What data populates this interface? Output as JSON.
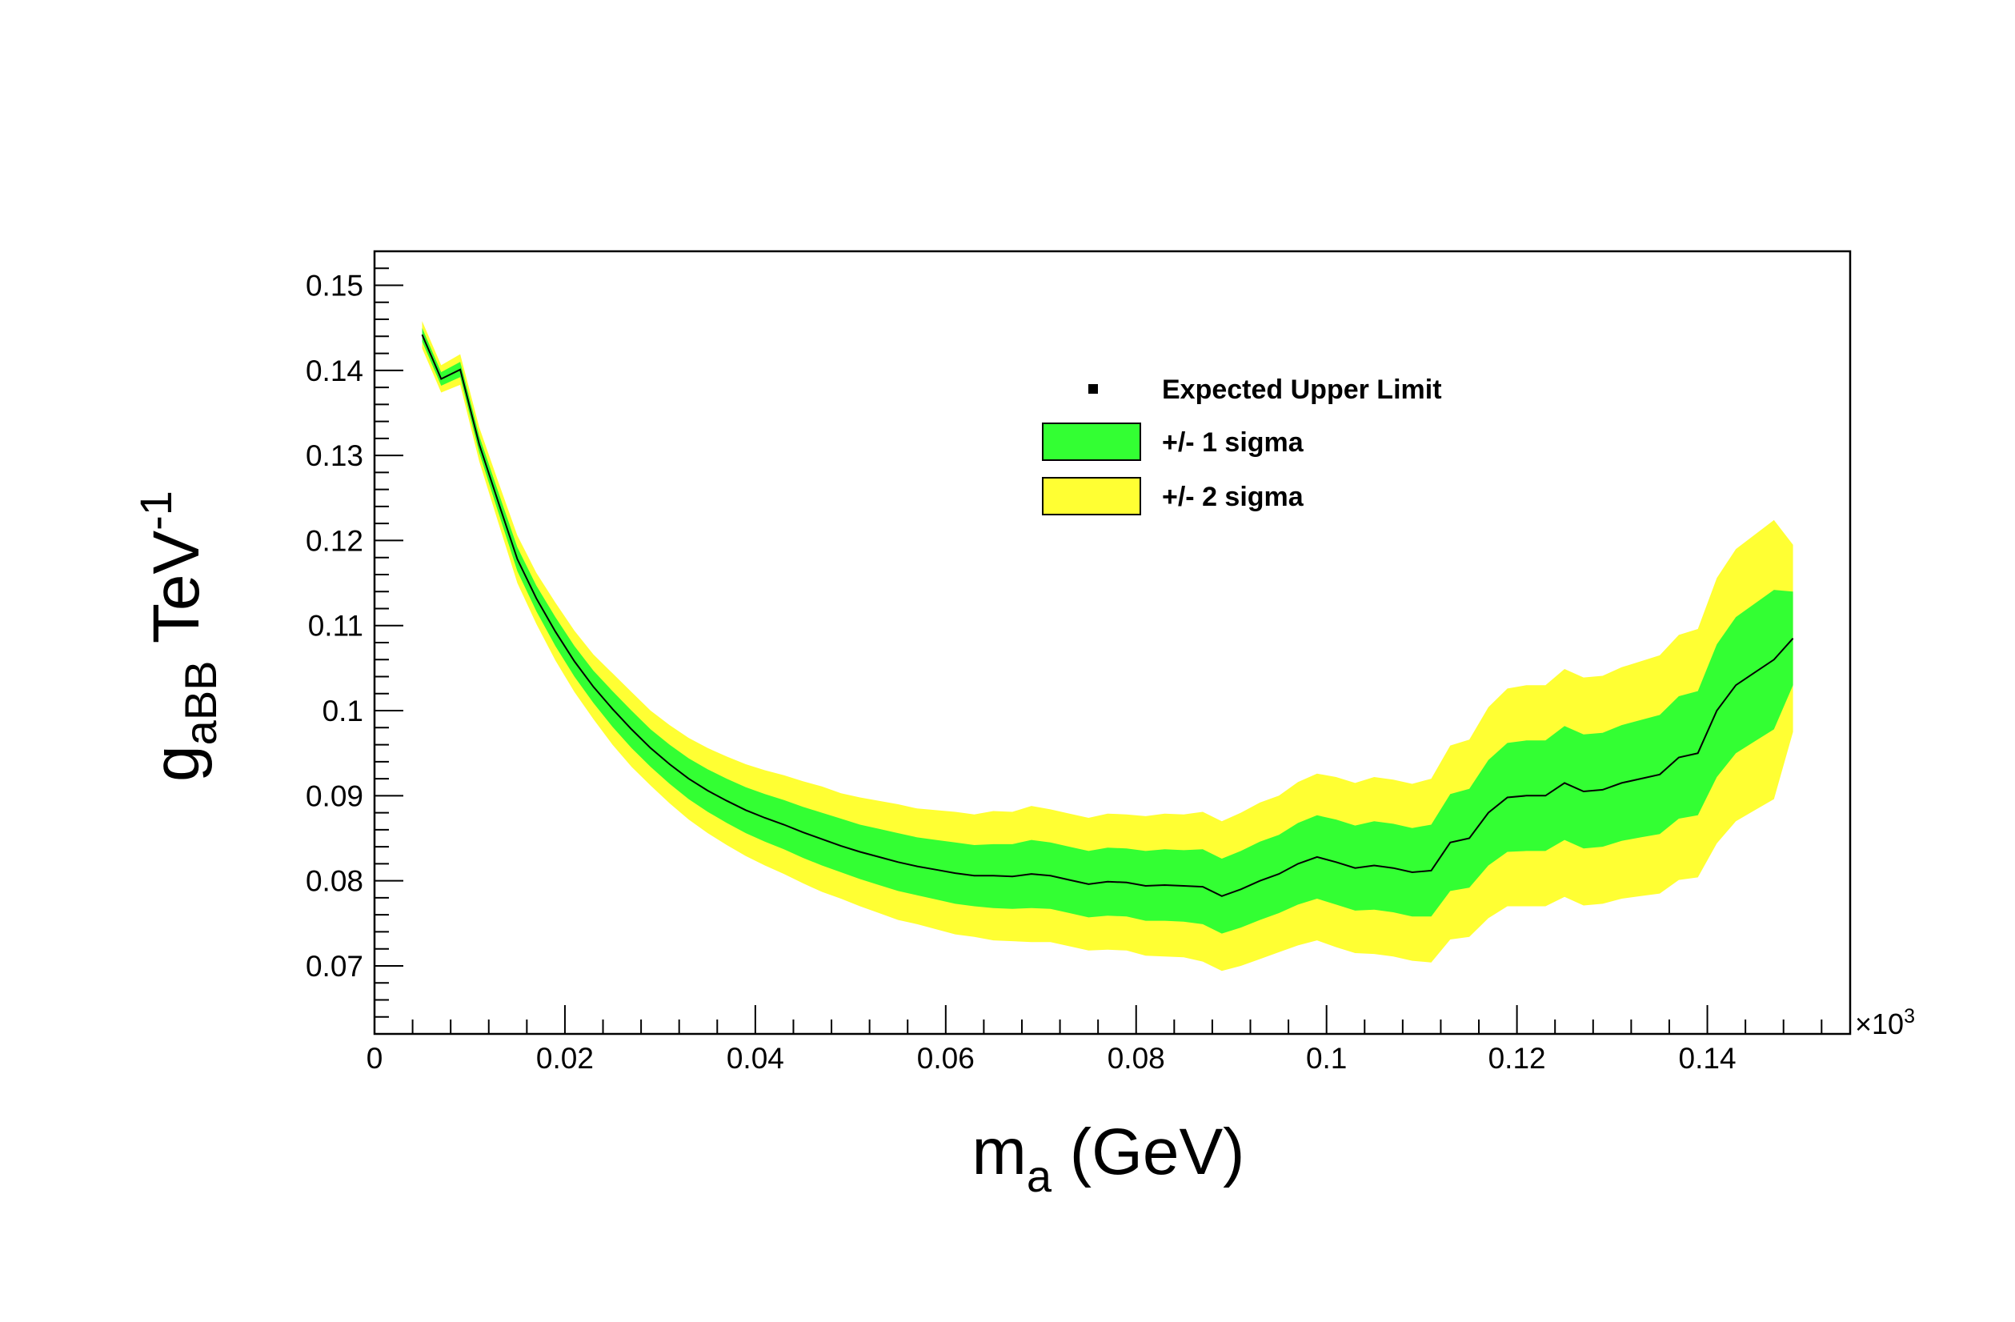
{
  "chart_data": {
    "type": "line",
    "title": "",
    "xlabel": {
      "main": "m",
      "sub": "a",
      "suffix": " (GeV)"
    },
    "ylabel": {
      "main": "g",
      "sub": "aBB",
      "mid": " TeV",
      "sup": "-1"
    },
    "x_multiplier": {
      "prefix": "×10",
      "exp": "3"
    },
    "xlim": [
      0,
      0.155
    ],
    "ylim": [
      0.062,
      0.154
    ],
    "x_ticks": [
      {
        "v": 0,
        "label": "0"
      },
      {
        "v": 0.02,
        "label": "0.02"
      },
      {
        "v": 0.04,
        "label": "0.04"
      },
      {
        "v": 0.06,
        "label": "0.06"
      },
      {
        "v": 0.08,
        "label": "0.08"
      },
      {
        "v": 0.1,
        "label": "0.1"
      },
      {
        "v": 0.12,
        "label": "0.12"
      },
      {
        "v": 0.14,
        "label": "0.14"
      }
    ],
    "y_ticks": [
      {
        "v": 0.07,
        "label": "0.07"
      },
      {
        "v": 0.08,
        "label": "0.08"
      },
      {
        "v": 0.09,
        "label": "0.09"
      },
      {
        "v": 0.1,
        "label": "0.1"
      },
      {
        "v": 0.11,
        "label": "0.11"
      },
      {
        "v": 0.12,
        "label": "0.12"
      },
      {
        "v": 0.13,
        "label": "0.13"
      },
      {
        "v": 0.14,
        "label": "0.14"
      },
      {
        "v": 0.15,
        "label": "0.15"
      }
    ],
    "x": [
      0.005,
      0.007,
      0.009,
      0.011,
      0.013,
      0.015,
      0.017,
      0.019,
      0.021,
      0.023,
      0.025,
      0.027,
      0.029,
      0.031,
      0.033,
      0.035,
      0.037,
      0.039,
      0.041,
      0.043,
      0.045,
      0.047,
      0.049,
      0.051,
      0.053,
      0.055,
      0.057,
      0.059,
      0.061,
      0.063,
      0.065,
      0.067,
      0.069,
      0.071,
      0.073,
      0.075,
      0.077,
      0.079,
      0.081,
      0.083,
      0.085,
      0.087,
      0.089,
      0.091,
      0.093,
      0.095,
      0.097,
      0.099,
      0.101,
      0.103,
      0.105,
      0.107,
      0.109,
      0.111,
      0.113,
      0.115,
      0.117,
      0.119,
      0.121,
      0.123,
      0.125,
      0.127,
      0.129,
      0.131,
      0.133,
      0.135,
      0.137,
      0.139,
      0.141,
      0.143,
      0.145,
      0.147,
      0.149
    ],
    "expected": [
      0.1442,
      0.139,
      0.1401,
      0.1313,
      0.1245,
      0.1178,
      0.1132,
      0.1093,
      0.1058,
      0.1028,
      0.1002,
      0.0978,
      0.0956,
      0.0937,
      0.092,
      0.0906,
      0.0894,
      0.0883,
      0.0874,
      0.0866,
      0.0857,
      0.0849,
      0.0841,
      0.0834,
      0.0828,
      0.0822,
      0.0817,
      0.0813,
      0.0809,
      0.0806,
      0.0806,
      0.0805,
      0.0808,
      0.0806,
      0.0801,
      0.0796,
      0.0799,
      0.0798,
      0.0794,
      0.0795,
      0.0794,
      0.0793,
      0.0782,
      0.079,
      0.08,
      0.0808,
      0.082,
      0.0828,
      0.0822,
      0.0815,
      0.0818,
      0.0815,
      0.081,
      0.0812,
      0.0845,
      0.085,
      0.088,
      0.0898,
      0.09,
      0.09,
      0.0915,
      0.0905,
      0.0907,
      0.0915,
      0.092,
      0.0925,
      0.0945,
      0.095,
      0.1,
      0.103,
      0.1045,
      0.106,
      0.1085
    ],
    "sigma1_lo": [
      0.1434,
      0.1382,
      0.1392,
      0.1303,
      0.1233,
      0.1164,
      0.1117,
      0.1076,
      0.104,
      0.1009,
      0.0981,
      0.0956,
      0.0934,
      0.0914,
      0.0896,
      0.0881,
      0.0868,
      0.0856,
      0.0846,
      0.0837,
      0.0827,
      0.0818,
      0.081,
      0.0802,
      0.0795,
      0.0788,
      0.0783,
      0.0778,
      0.0773,
      0.077,
      0.0768,
      0.0767,
      0.0768,
      0.0767,
      0.0762,
      0.0757,
      0.0759,
      0.0758,
      0.0753,
      0.0753,
      0.0752,
      0.0749,
      0.0738,
      0.0745,
      0.0754,
      0.0762,
      0.0772,
      0.0779,
      0.0772,
      0.0765,
      0.0766,
      0.0763,
      0.0758,
      0.0758,
      0.0788,
      0.0792,
      0.0818,
      0.0834,
      0.0835,
      0.0835,
      0.0848,
      0.0838,
      0.084,
      0.0847,
      0.0851,
      0.0855,
      0.0873,
      0.0877,
      0.0922,
      0.095,
      0.0964,
      0.0978,
      0.103
    ],
    "sigma1_hi": [
      0.145,
      0.1398,
      0.141,
      0.1323,
      0.1257,
      0.1192,
      0.1147,
      0.111,
      0.1076,
      0.1047,
      0.1023,
      0.1,
      0.0978,
      0.096,
      0.0944,
      0.0931,
      0.092,
      0.091,
      0.0902,
      0.0895,
      0.0887,
      0.088,
      0.0873,
      0.0866,
      0.0861,
      0.0856,
      0.0851,
      0.0848,
      0.0845,
      0.0842,
      0.0843,
      0.0843,
      0.0848,
      0.0845,
      0.084,
      0.0835,
      0.0839,
      0.0838,
      0.0835,
      0.0837,
      0.0836,
      0.0837,
      0.0826,
      0.0835,
      0.0846,
      0.0854,
      0.0868,
      0.0877,
      0.0872,
      0.0865,
      0.087,
      0.0867,
      0.0862,
      0.0866,
      0.0902,
      0.0908,
      0.0942,
      0.0962,
      0.0965,
      0.0965,
      0.0982,
      0.0972,
      0.0974,
      0.0983,
      0.0989,
      0.0995,
      0.1017,
      0.1023,
      0.1078,
      0.111,
      0.1126,
      0.1142,
      0.114
    ],
    "sigma2_lo": [
      0.1426,
      0.1374,
      0.1383,
      0.1293,
      0.1221,
      0.115,
      0.1102,
      0.1059,
      0.1022,
      0.099,
      0.096,
      0.0934,
      0.0912,
      0.0891,
      0.0872,
      0.0856,
      0.0842,
      0.0829,
      0.0818,
      0.0808,
      0.0797,
      0.0787,
      0.0779,
      0.077,
      0.0762,
      0.0754,
      0.0749,
      0.0743,
      0.0737,
      0.0734,
      0.073,
      0.0729,
      0.0728,
      0.0728,
      0.0723,
      0.0718,
      0.0719,
      0.0718,
      0.0712,
      0.0711,
      0.071,
      0.0705,
      0.0694,
      0.07,
      0.0708,
      0.0716,
      0.0724,
      0.073,
      0.0722,
      0.0715,
      0.0714,
      0.0711,
      0.0706,
      0.0704,
      0.0731,
      0.0734,
      0.0756,
      0.077,
      0.077,
      0.077,
      0.0781,
      0.0771,
      0.0773,
      0.0779,
      0.0782,
      0.0785,
      0.0801,
      0.0804,
      0.0844,
      0.087,
      0.0883,
      0.0896,
      0.0975
    ],
    "sigma2_hi": [
      0.1458,
      0.1406,
      0.1419,
      0.1333,
      0.1269,
      0.1206,
      0.1162,
      0.1127,
      0.1094,
      0.1066,
      0.1044,
      0.1022,
      0.1,
      0.0983,
      0.0968,
      0.0956,
      0.0946,
      0.0937,
      0.093,
      0.0924,
      0.0917,
      0.0911,
      0.0903,
      0.0898,
      0.0894,
      0.089,
      0.0885,
      0.0883,
      0.0881,
      0.0878,
      0.0882,
      0.0881,
      0.0888,
      0.0884,
      0.0879,
      0.0874,
      0.0879,
      0.0878,
      0.0876,
      0.0879,
      0.0878,
      0.0881,
      0.087,
      0.088,
      0.0892,
      0.09,
      0.0916,
      0.0926,
      0.0922,
      0.0915,
      0.0922,
      0.0919,
      0.0914,
      0.092,
      0.0959,
      0.0966,
      0.1004,
      0.1026,
      0.103,
      0.103,
      0.1049,
      0.1039,
      0.1041,
      0.1051,
      0.1058,
      0.1065,
      0.1089,
      0.1096,
      0.1156,
      0.119,
      0.1207,
      0.1224,
      0.1195
    ],
    "legend": {
      "position": "top-center",
      "entries": [
        {
          "label": "Expected Upper Limit",
          "kind": "marker",
          "color": "#000000"
        },
        {
          "label": "+/- 1 sigma",
          "kind": "box",
          "color": "#33ff33"
        },
        {
          "label": "+/- 2 sigma",
          "kind": "box",
          "color": "#ffff33"
        }
      ]
    },
    "colors": {
      "sigma1": "#33ff33",
      "sigma2": "#ffff33",
      "line": "#000000"
    }
  }
}
